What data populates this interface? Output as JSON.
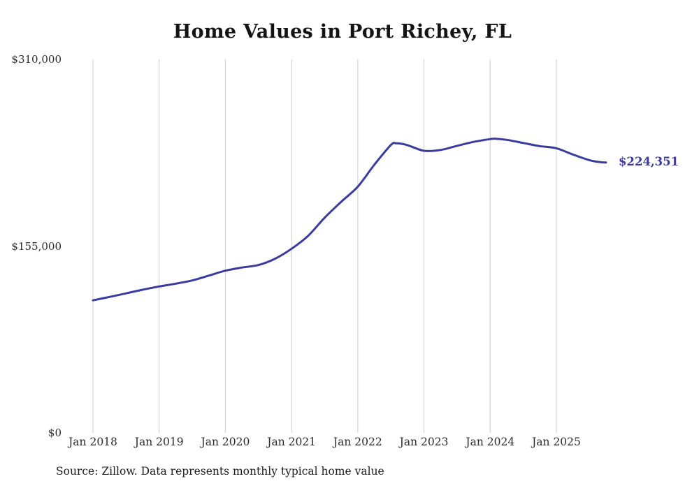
{
  "chart_data": {
    "type": "line",
    "title": "Home Values in Port Richey, FL",
    "source": "Source: Zillow. Data represents monthly typical home value",
    "xlabel": "",
    "ylabel": "",
    "ylim": [
      0,
      310000
    ],
    "xlim": [
      "2018-01",
      "2025-10"
    ],
    "grid": "vertical",
    "grid_color": "#cccccc",
    "line_color": "#3b3b9e",
    "end_label": "$224,351",
    "end_value": 224351,
    "yticks": [
      {
        "value": 0,
        "label": "$0"
      },
      {
        "value": 155000,
        "label": "$155,000"
      },
      {
        "value": 310000,
        "label": "$310,000"
      }
    ],
    "xticks": [
      {
        "year": 2018,
        "label": "Jan 2018"
      },
      {
        "year": 2019,
        "label": "Jan 2019"
      },
      {
        "year": 2020,
        "label": "Jan 2020"
      },
      {
        "year": 2021,
        "label": "Jan 2021"
      },
      {
        "year": 2022,
        "label": "Jan 2022"
      },
      {
        "year": 2023,
        "label": "Jan 2023"
      },
      {
        "year": 2024,
        "label": "Jan 2024"
      },
      {
        "year": 2025,
        "label": "Jan 2025"
      }
    ],
    "series": [
      {
        "name": "Typical home value",
        "dates": [
          "2018-01",
          "2018-04",
          "2018-07",
          "2018-10",
          "2019-01",
          "2019-04",
          "2019-07",
          "2019-10",
          "2020-01",
          "2020-04",
          "2020-07",
          "2020-10",
          "2021-01",
          "2021-04",
          "2021-07",
          "2021-10",
          "2022-01",
          "2022-04",
          "2022-07",
          "2022-08",
          "2022-10",
          "2023-01",
          "2023-04",
          "2023-07",
          "2023-10",
          "2024-01",
          "2024-02",
          "2024-04",
          "2024-07",
          "2024-10",
          "2025-01",
          "2025-04",
          "2025-07",
          "2025-09",
          "2025-10"
        ],
        "values": [
          110000,
          112800,
          115800,
          118800,
          121500,
          123800,
          126500,
          130500,
          134600,
          137200,
          139300,
          144500,
          152800,
          163500,
          178600,
          191800,
          204300,
          222500,
          238900,
          240300,
          238800,
          234100,
          234800,
          238200,
          241500,
          243800,
          244100,
          243200,
          240600,
          238000,
          236200,
          231000,
          226300,
          224700,
          224351
        ]
      }
    ]
  }
}
